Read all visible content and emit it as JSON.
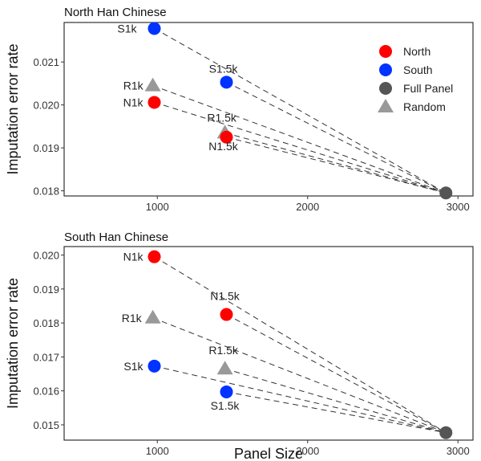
{
  "chart_data": [
    {
      "type": "scatter",
      "title": "North Han Chinese",
      "xlabel": "",
      "ylabel": "Imputation error rate",
      "xlim": [
        380,
        3100
      ],
      "ylim": [
        0.01788,
        0.02192
      ],
      "xticks": [
        1000,
        2000,
        3000
      ],
      "yticks": [
        0.018,
        0.019,
        0.02,
        0.021
      ],
      "grid": false,
      "legend": {
        "placement": "top-right",
        "entries": [
          {
            "name": "North",
            "color": "#ff0000",
            "shape": "circle"
          },
          {
            "name": "South",
            "color": "#0033ff",
            "shape": "circle"
          },
          {
            "name": "Full Panel",
            "color": "#555555",
            "shape": "circle"
          },
          {
            "name": "Random",
            "color": "#999999",
            "shape": "triangle"
          }
        ]
      },
      "points": [
        {
          "label": "S1k",
          "group": "South",
          "x": 980,
          "y": 0.02178
        },
        {
          "label": "S1.5k",
          "group": "South",
          "x": 1460,
          "y": 0.02053
        },
        {
          "label": "R1k",
          "group": "Random",
          "x": 970,
          "y": 0.02045
        },
        {
          "label": "N1k",
          "group": "North",
          "x": 980,
          "y": 0.02006
        },
        {
          "label": "R1.5k",
          "group": "Random",
          "x": 1450,
          "y": 0.01935
        },
        {
          "label": "N1.5k",
          "group": "North",
          "x": 1460,
          "y": 0.01925
        },
        {
          "label": "",
          "group": "Full Panel",
          "x": 2920,
          "y": 0.01795
        }
      ]
    },
    {
      "type": "scatter",
      "title": "South Han Chinese",
      "xlabel": "Panel Size",
      "ylabel": "Imputation error rate",
      "xlim": [
        380,
        3100
      ],
      "ylim": [
        0.01455,
        0.02025
      ],
      "xticks": [
        1000,
        2000,
        3000
      ],
      "yticks": [
        0.015,
        0.016,
        0.017,
        0.018,
        0.019,
        0.02
      ],
      "grid": false,
      "points": [
        {
          "label": "N1k",
          "group": "North",
          "x": 980,
          "y": 0.01995
        },
        {
          "label": "N1.5k",
          "group": "North",
          "x": 1460,
          "y": 0.01825
        },
        {
          "label": "R1k",
          "group": "Random",
          "x": 970,
          "y": 0.01815
        },
        {
          "label": "R1.5k",
          "group": "Random",
          "x": 1450,
          "y": 0.01665
        },
        {
          "label": "S1k",
          "group": "South",
          "x": 980,
          "y": 0.01673
        },
        {
          "label": "S1.5k",
          "group": "South",
          "x": 1460,
          "y": 0.01597
        },
        {
          "label": "",
          "group": "Full Panel",
          "x": 2920,
          "y": 0.01477
        }
      ]
    }
  ]
}
